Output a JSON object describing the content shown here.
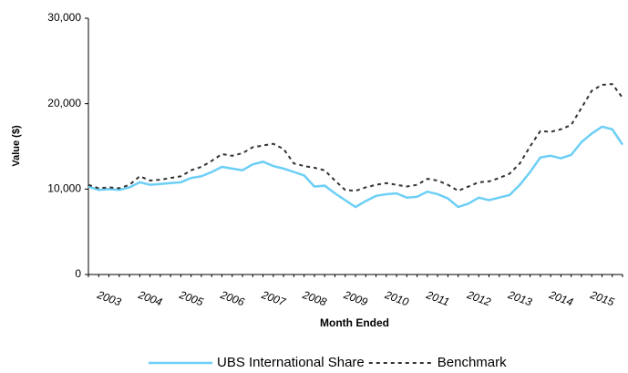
{
  "chart_data": {
    "type": "line",
    "y_label": "Value ($)",
    "x_label": "Month Ended",
    "categories": [
      null,
      null,
      "2003",
      null,
      null,
      null,
      "2004",
      null,
      null,
      null,
      "2005",
      null,
      null,
      null,
      "2006",
      null,
      null,
      null,
      "2007",
      null,
      null,
      null,
      "2008",
      null,
      null,
      null,
      "2009",
      null,
      null,
      null,
      "2010",
      null,
      null,
      null,
      "2011",
      null,
      null,
      null,
      "2012",
      null,
      null,
      null,
      "2013",
      null,
      null,
      null,
      "2014",
      null,
      null,
      null,
      "2015",
      null,
      null
    ],
    "series": [
      {
        "name": "UBS International Share",
        "color": "#6dcff6",
        "line_style": "solid",
        "values": [
          10300,
          9900,
          10000,
          9900,
          10200,
          10800,
          10500,
          10600,
          10700,
          10800,
          11300,
          11500,
          12000,
          12600,
          12400,
          12200,
          12900,
          13200,
          12700,
          12400,
          12000,
          11600,
          10300,
          10400,
          9500,
          8700,
          7900,
          8600,
          9200,
          9400,
          9500,
          9000,
          9100,
          9700,
          9400,
          8900,
          7900,
          8300,
          9000,
          8700,
          9000,
          9300,
          10500,
          12000,
          13700,
          13900,
          13600,
          14000,
          15500,
          16500,
          17300,
          17000,
          15200
        ]
      },
      {
        "name": "Benchmark",
        "color": "#333333",
        "line_style": "dashed",
        "values": [
          10500,
          10100,
          10200,
          10100,
          10500,
          11500,
          11000,
          11100,
          11300,
          11500,
          12200,
          12600,
          13300,
          14100,
          13900,
          14200,
          14900,
          15100,
          15300,
          14700,
          13000,
          12700,
          12500,
          12200,
          11000,
          9900,
          9800,
          10200,
          10500,
          10700,
          10500,
          10300,
          10500,
          11200,
          11000,
          10500,
          9800,
          10300,
          10800,
          10900,
          11300,
          11800,
          13000,
          15000,
          16800,
          16700,
          17000,
          17500,
          19500,
          21500,
          22200,
          22300,
          20700
        ]
      }
    ],
    "ylim": [
      0,
      30000
    ],
    "yticks": [
      0,
      {
        "value": 10000,
        "label": "10,000"
      },
      {
        "value": 20000,
        "label": "20,000"
      },
      {
        "value": 30000,
        "label": "30,000"
      }
    ],
    "grid": false,
    "legend": "bottom"
  }
}
